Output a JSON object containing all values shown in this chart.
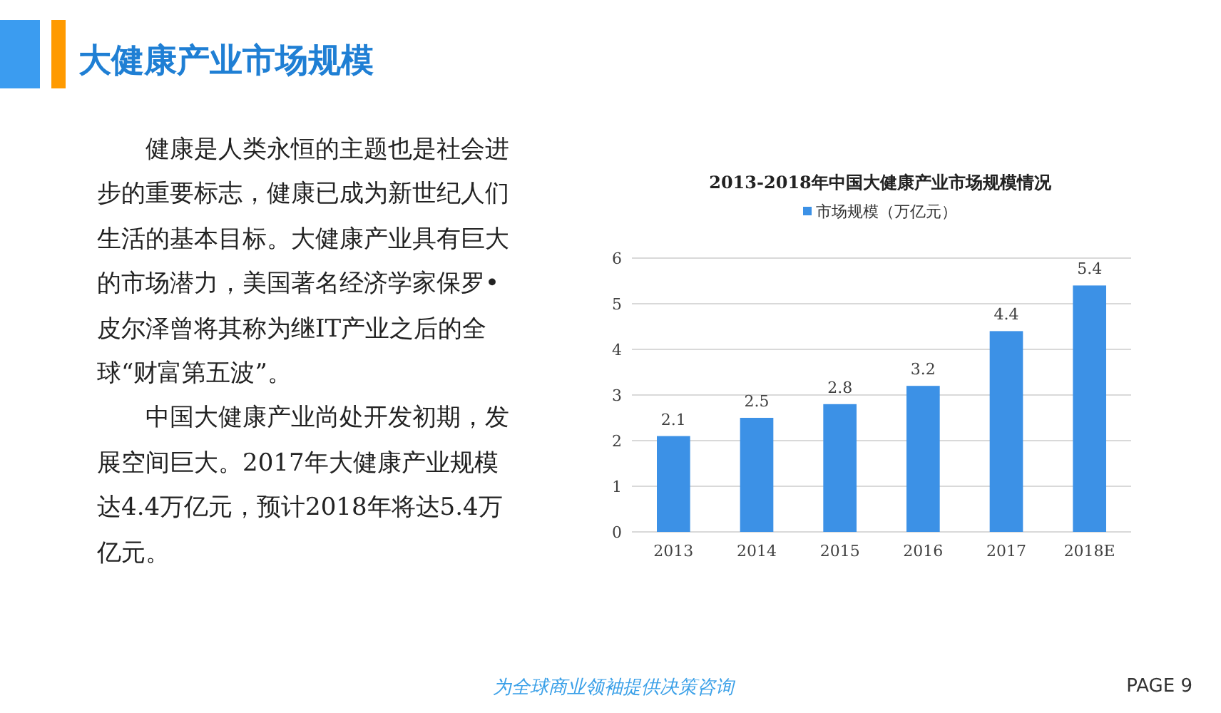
{
  "chart_data": {
    "type": "bar",
    "title": "大健康产业市场规模",
    "subtitle": "2013-2018年中国大健康产业市场规模情况",
    "categories": [
      "2013",
      "2014",
      "2015",
      "2016",
      "2017",
      "2018E"
    ],
    "series": [
      {
        "name": "市场规模（万亿元）",
        "color": "#3c91e6",
        "values": [
          2.1,
          2.5,
          2.8,
          3.2,
          4.4,
          5.4
        ]
      }
    ],
    "ylim": [
      0,
      6
    ],
    "yticks": [
      0,
      1,
      2,
      3,
      4,
      5,
      6
    ],
    "grid": "y",
    "legend": "top",
    "data_labels": true,
    "annotations": [
      "健康是人类永恒的主题也是社会进步的重要标志，健康已成为新世纪人们生活的基本目标。大健康产业具有巨大的市场潜力，美国著名经济学家保罗•皮尔泽曾将其称为继IT产业之后的全球“财富第五波”。",
      "中国大健康产业尚处开发初期，发展空间巨大。2017年大健康产业规模达4.4万亿元，预计2018年将达5.4万亿元。",
      "为全球商业领袖提供决策咨询",
      "PAGE 9"
    ]
  }
}
